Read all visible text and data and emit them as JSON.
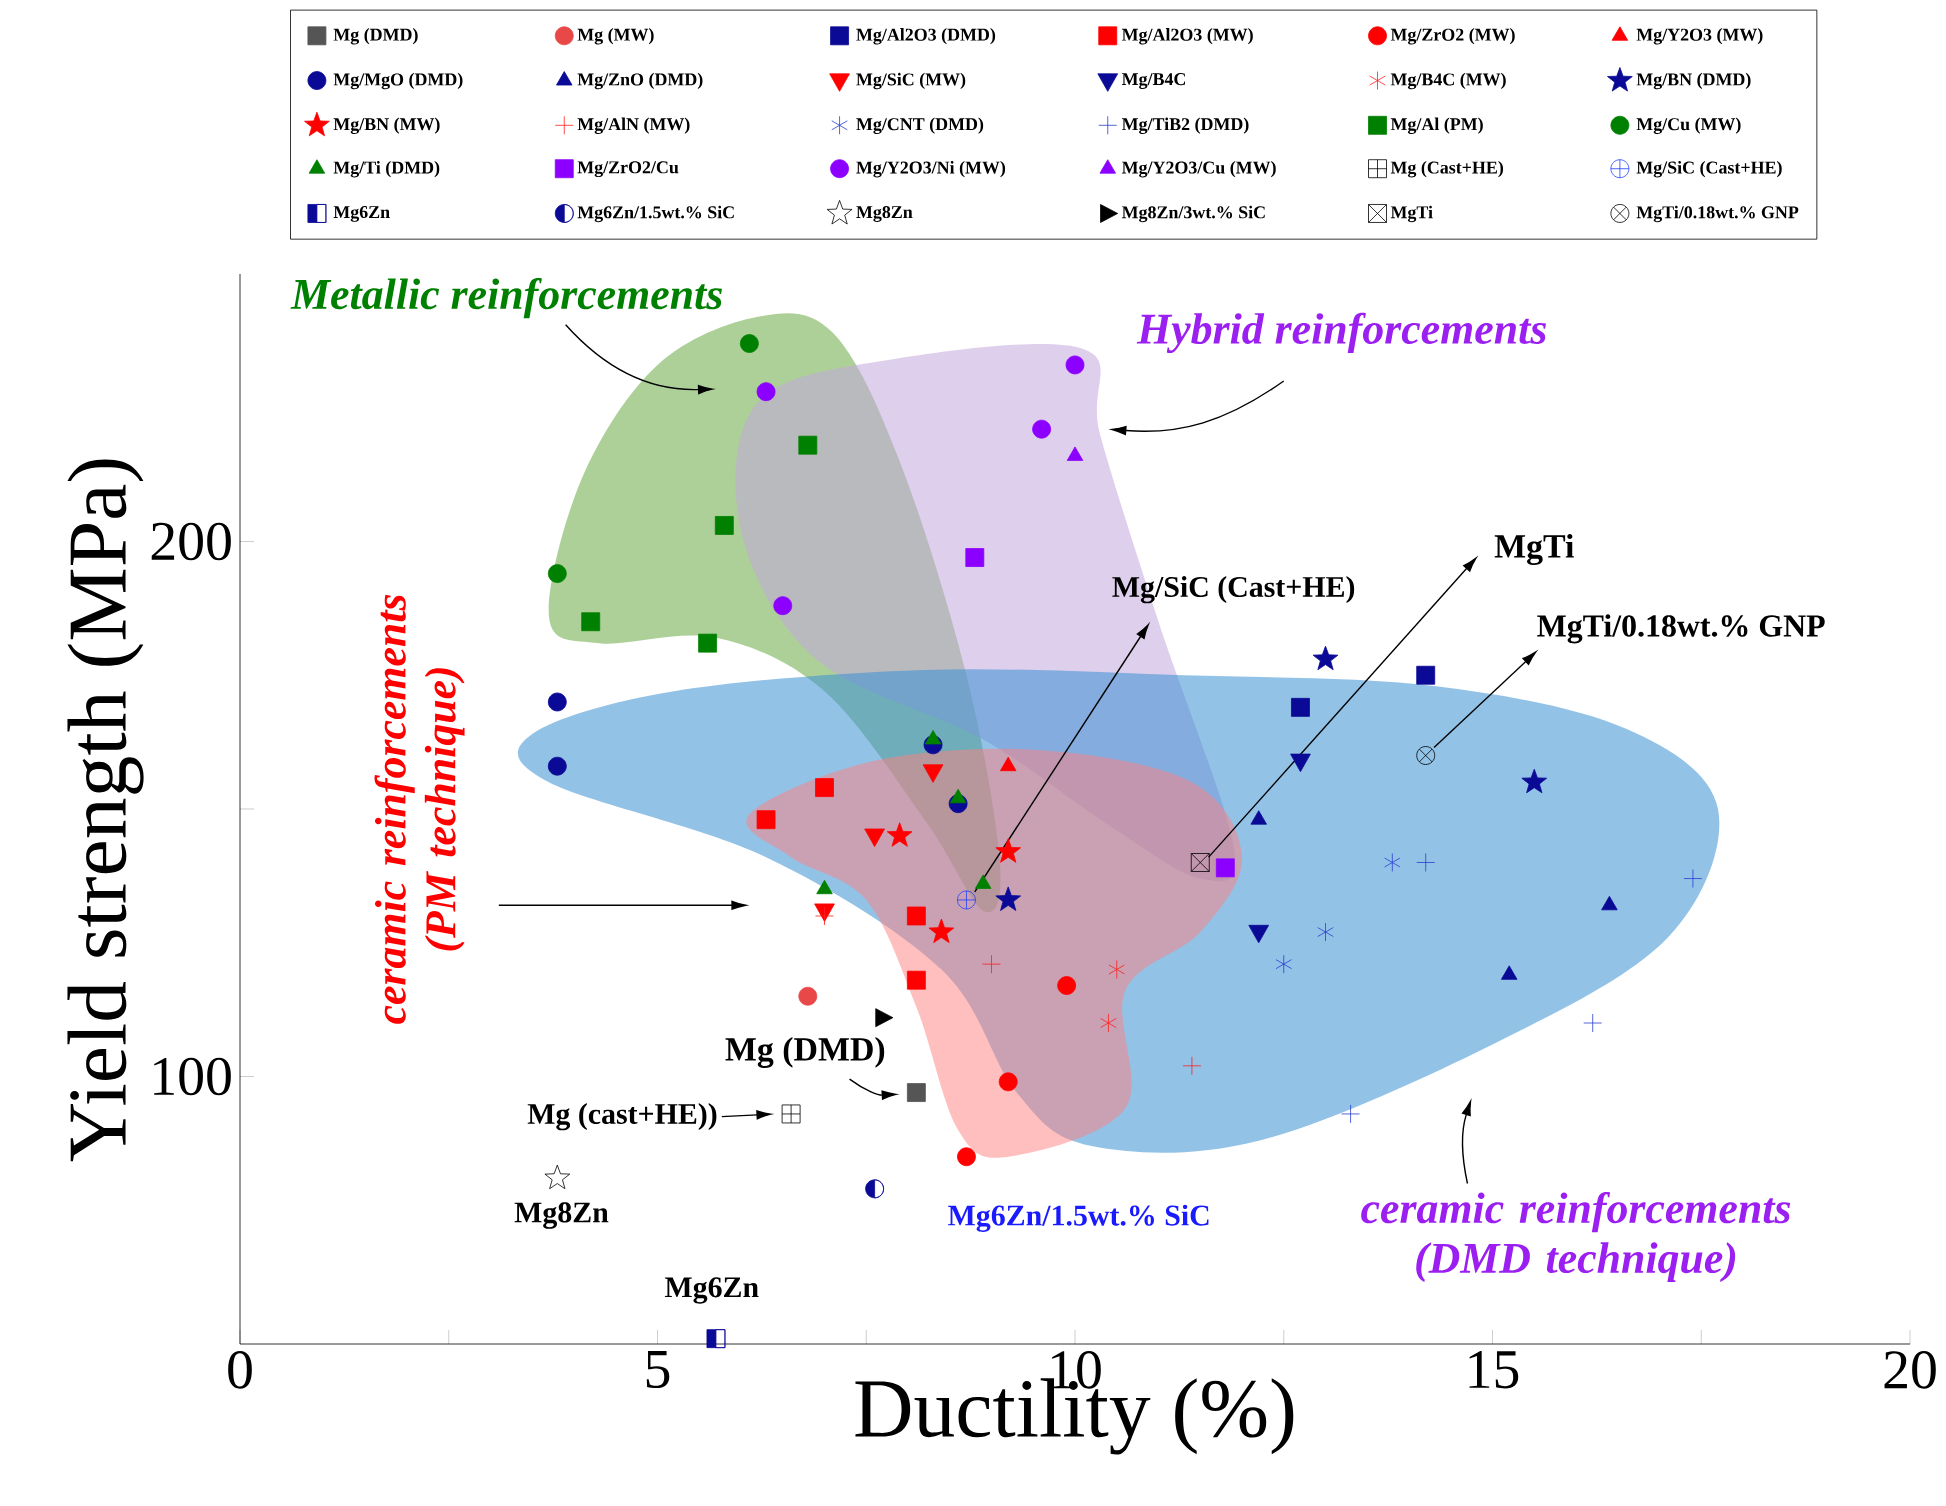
{
  "chart_data": {
    "type": "scatter",
    "xlabel": "Ductility (%)",
    "ylabel": "Yield strength (MPa)",
    "xlim": [
      0,
      20
    ],
    "ylim": [
      50,
      250
    ],
    "xticks": [
      0,
      {
        "value": 2.5,
        "label": null
      },
      5,
      {
        "value": 7.5,
        "label": null
      },
      10,
      {
        "value": 12.5,
        "label": null
      },
      15,
      {
        "value": 17.5,
        "label": null
      },
      20
    ],
    "yticks": [
      {
        "value": 150,
        "label": null
      },
      100,
      200
    ],
    "grid": false,
    "legend": "top",
    "series": [
      {
        "name": "Mg (DMD)",
        "color": "#555555",
        "marker": "square",
        "x": [
          8.1
        ],
        "values": [
          97
        ]
      },
      {
        "name": "Mg (MW)",
        "color": "#e84848",
        "marker": "circle",
        "x": [
          6.8
        ],
        "values": [
          115
        ]
      },
      {
        "name": "Mg/Al2O3 (DMD)",
        "color": "#0a0a96",
        "marker": "square",
        "x": [
          12.7,
          14.2
        ],
        "values": [
          169,
          175
        ]
      },
      {
        "name": "Mg/Al2O3 (MW)",
        "color": "#ff0000",
        "marker": "square",
        "x": [
          7.0,
          6.3,
          8.1,
          8.1
        ],
        "values": [
          154,
          148,
          130,
          118
        ]
      },
      {
        "name": "Mg/ZrO2 (MW)",
        "color": "#ff0000",
        "marker": "circle",
        "x": [
          9.9,
          9.2,
          8.7
        ],
        "values": [
          117,
          99,
          85
        ]
      },
      {
        "name": "Mg/Y2O3 (MW)",
        "color": "#ff0000",
        "marker": "triangle",
        "x": [
          9.2
        ],
        "values": [
          158
        ]
      },
      {
        "name": "Mg/MgO (DMD)",
        "color": "#0a0a96",
        "marker": "circle",
        "x": [
          3.8,
          3.8,
          8.3,
          8.6
        ],
        "values": [
          170,
          158,
          162,
          151
        ]
      },
      {
        "name": "Mg/ZnO (DMD)",
        "color": "#0a0a96",
        "marker": "triangle",
        "x": [
          12.2,
          16.4,
          15.2
        ],
        "values": [
          148,
          132,
          119
        ]
      },
      {
        "name": "Mg/SiC (MW)",
        "color": "#ff0000",
        "x": [
          8.3,
          7.6,
          7.0
        ],
        "values": [
          157,
          145,
          131
        ]
      },
      {
        "name": "Mg/B4C",
        "color": "#0a0a96",
        "x": [
          12.7,
          12.2
        ],
        "values": [
          159,
          127
        ]
      },
      {
        "name": "Mg/B4C (MW)",
        "color": "#ff2020",
        "x": [
          10.5,
          10.4
        ],
        "values": [
          120,
          110
        ]
      },
      {
        "name": "Mg/BN (DMD)",
        "color": "#0a0a96",
        "marker": "star",
        "x": [
          13.0,
          15.5,
          9.2
        ],
        "values": [
          178,
          155,
          133
        ]
      },
      {
        "name": "Mg/BN (MW)",
        "color": "#ff0000",
        "marker": "star",
        "x": [
          7.9,
          9.2,
          8.4
        ],
        "values": [
          145,
          142,
          127
        ]
      },
      {
        "name": "Mg/AlN (MW)",
        "color": "#ff2020",
        "marker": "cross",
        "x": [
          7.0,
          9.0,
          11.4
        ],
        "values": [
          130,
          121,
          102
        ]
      },
      {
        "name": "Mg/CNT (DMD)",
        "color": "#2a3fd0",
        "x": [
          13.8,
          13.0,
          12.5
        ],
        "values": [
          140,
          127,
          121
        ]
      },
      {
        "name": "Mg/TiB2 (DMD)",
        "color": "#2a3fd0",
        "marker": "cross",
        "x": [
          14.2,
          17.4,
          16.2,
          13.3
        ],
        "values": [
          140,
          137,
          110,
          93
        ]
      },
      {
        "name": "Mg/Al (PM)",
        "color": "#008000",
        "marker": "square",
        "x": [
          6.8,
          5.8,
          4.2,
          5.6
        ],
        "values": [
          218,
          203,
          185,
          181
        ]
      },
      {
        "name": "Mg/Cu (MW)",
        "color": "#008000",
        "marker": "circle",
        "x": [
          6.1,
          3.8
        ],
        "values": [
          237,
          194
        ]
      },
      {
        "name": "Mg/Ti (DMD)",
        "color": "#008000",
        "marker": "triangle",
        "x": [
          8.3,
          8.6,
          8.9,
          7.0
        ],
        "values": [
          163,
          152,
          136,
          135
        ]
      },
      {
        "name": "Mg/ZrO2/Cu",
        "color": "#8b00ff",
        "marker": "square",
        "x": [
          8.8,
          11.8
        ],
        "values": [
          197,
          139
        ]
      },
      {
        "name": "Mg/Y2O3/Ni (MW)",
        "color": "#8b00ff",
        "marker": "circle",
        "x": [
          6.3,
          6.5,
          10.0,
          9.6
        ],
        "values": [
          228,
          188,
          233,
          221
        ]
      },
      {
        "name": "Mg/Y2O3/Cu (MW)",
        "color": "#8b00ff",
        "marker": "triangle",
        "x": [
          10.0
        ],
        "values": [
          216
        ]
      },
      {
        "name": "Mg (Cast+HE)",
        "color": "#000000",
        "x": [
          6.6
        ],
        "values": [
          93
        ]
      },
      {
        "name": "Mg/SiC (Cast+HE)",
        "color": "#2040ff",
        "x": [
          8.7
        ],
        "values": [
          133
        ]
      },
      {
        "name": "Mg6Zn",
        "color": "#0a0a96",
        "x": [
          5.7
        ],
        "values": [
          51
        ]
      },
      {
        "name": "Mg6Zn/1.5wt.% SiC",
        "color": "#0a0a96",
        "x": [
          7.6
        ],
        "values": [
          79
        ]
      },
      {
        "name": "Mg8Zn",
        "color": "#000000",
        "x": [
          3.8
        ],
        "values": [
          81
        ]
      },
      {
        "name": "Mg8Zn/3wt.% SiC",
        "color": "#000000",
        "x": [
          7.7
        ],
        "values": [
          111
        ]
      },
      {
        "name": "MgTi",
        "color": "#000000",
        "x": [
          11.5
        ],
        "values": [
          140
        ]
      },
      {
        "name": "MgTi/0.18wt.% GNP",
        "color": "#000000",
        "x": [
          14.2
        ],
        "values": [
          160
        ]
      }
    ],
    "annotations": [
      "Metallic reinforcements",
      "Hybrid reinforcements",
      "ceramic reinforcements (PM technique)",
      "ceramic reinforcements (DMD technique)",
      {
        "text": "Mg/SiC (Cast+HE)",
        "x": 8.7,
        "y": 133
      },
      {
        "text": "MgTi",
        "x": 11.5,
        "y": 140
      },
      {
        "text": "MgTi/0.18wt.% GNP",
        "x": 14.2,
        "y": 160
      },
      {
        "text": "Mg (DMD)",
        "x": 8.1,
        "y": 97
      },
      {
        "text": "Mg (cast+HE))",
        "x": 6.6,
        "y": 93
      },
      {
        "text": "Mg8Zn",
        "x": 3.8,
        "y": 81
      },
      {
        "text": "Mg6Zn/1.5wt.% SiC",
        "x": 7.6,
        "y": 79
      },
      {
        "text": "Mg6Zn",
        "x": 5.7,
        "y": 51
      }
    ]
  }
}
